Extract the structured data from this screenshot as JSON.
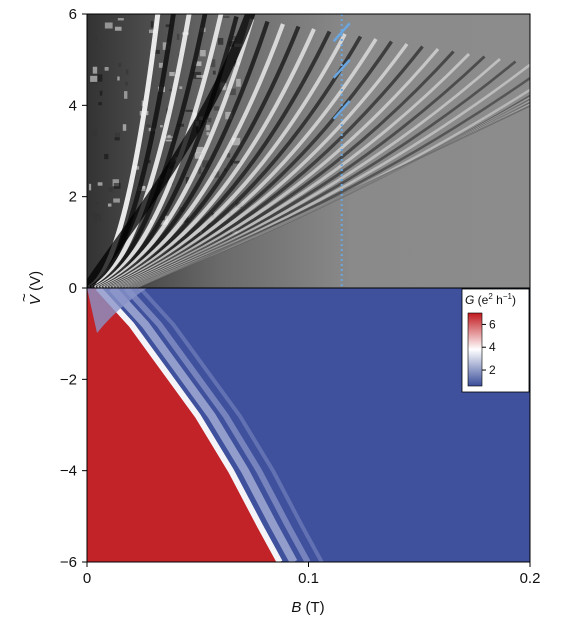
{
  "chart_data": [
    {
      "type": "heatmap",
      "panel": "top",
      "title": "",
      "xlabel": "",
      "ylabel": "",
      "xlim": [
        0,
        0.2
      ],
      "ylim": [
        0,
        6
      ],
      "yticks": [
        0,
        2,
        4,
        6
      ],
      "ytick_labels": [
        "0",
        "2",
        "4",
        "6"
      ],
      "colormap": "grayscale",
      "marker_line": {
        "x": 0.115,
        "style": "dotted",
        "color": "#6aa6e0"
      },
      "marker_slashes_v": [
        3.9,
        4.8,
        5.6
      ]
    },
    {
      "type": "heatmap",
      "panel": "bottom",
      "title": "",
      "xlabel": "B (T)",
      "xlabel_var": "B",
      "xlabel_unit": " (T)",
      "ylabel": "Ṽ (V)",
      "ylabel_var": "V",
      "ylabel_unit": " (V)",
      "xlim": [
        0,
        0.2
      ],
      "ylim": [
        -6,
        0
      ],
      "xticks": [
        0,
        0.1,
        0.2
      ],
      "xtick_labels": [
        "0",
        "0.1",
        "0.2"
      ],
      "yticks": [
        -6,
        -4,
        -2
      ],
      "ytick_labels": [
        "−6",
        "−4",
        "−2"
      ],
      "colormap": "blue-white-red",
      "colorbar": {
        "label_var": "G",
        "label_unit": " (e",
        "label_sup1": "2",
        "label_mid": " h",
        "label_sup2": "−1",
        "label_end": ")",
        "ticks": [
          2,
          4,
          6
        ],
        "tick_labels": [
          "2",
          "4",
          "6"
        ],
        "range": [
          0.6,
          7
        ],
        "colors": {
          "low": "#3a4e9a",
          "mid": "#ffffff",
          "high": "#c1191e"
        }
      },
      "boundary_points": [
        {
          "B": 0.005,
          "V": 0
        },
        {
          "B": 0.02,
          "V": -0.8
        },
        {
          "B": 0.035,
          "V": -1.8
        },
        {
          "B": 0.05,
          "V": -2.8
        },
        {
          "B": 0.065,
          "V": -4.0
        },
        {
          "B": 0.078,
          "V": -5.2
        },
        {
          "B": 0.087,
          "V": -6
        }
      ]
    }
  ]
}
